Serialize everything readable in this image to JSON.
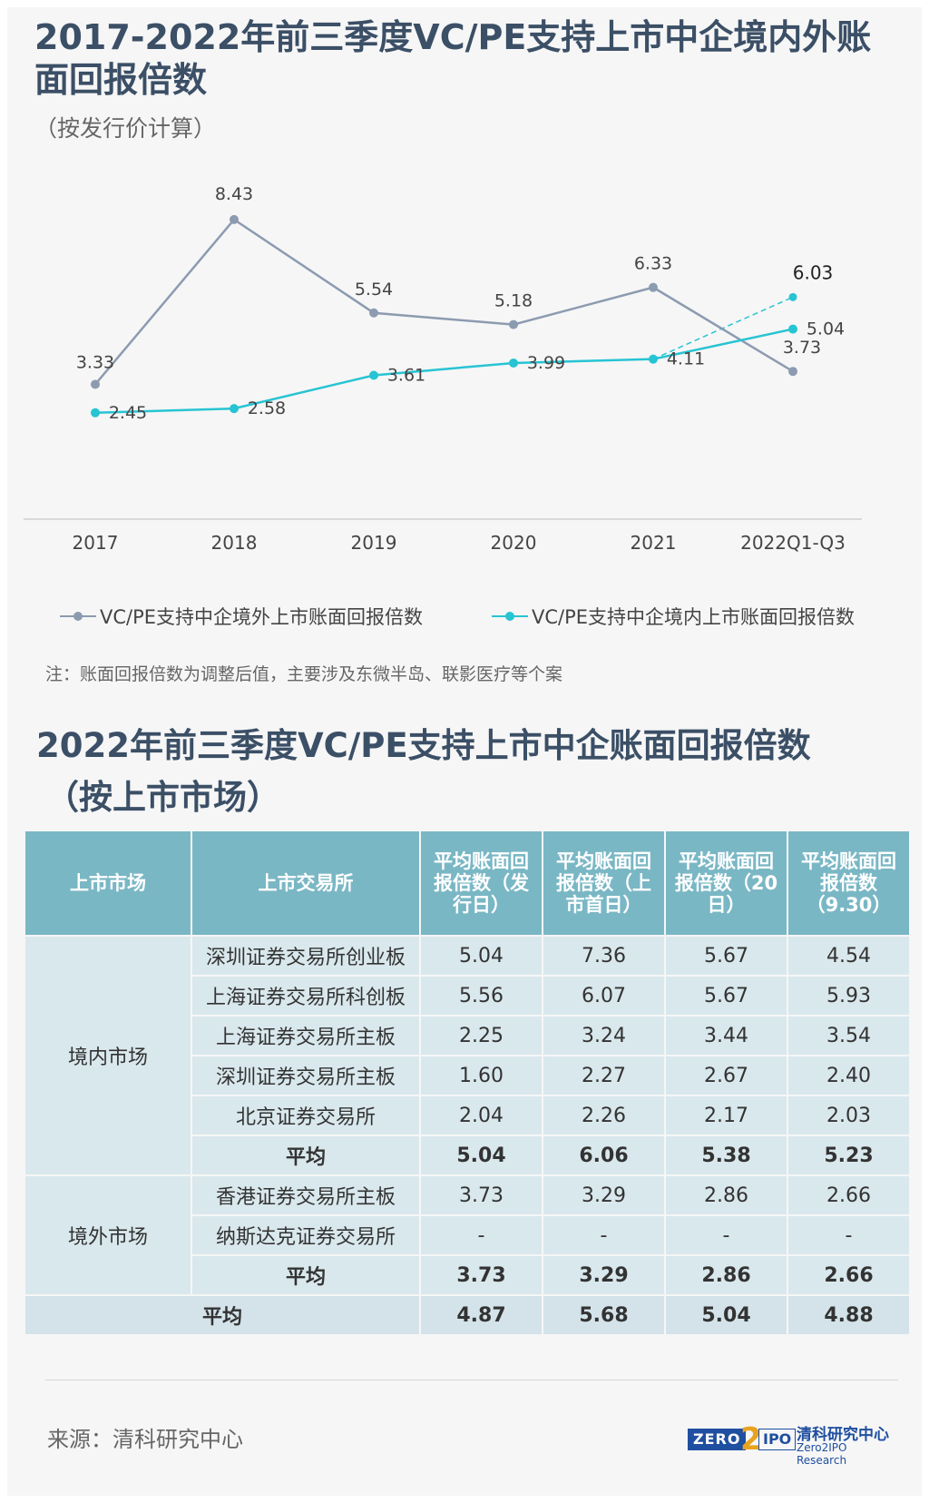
{
  "chart_title": "2017-2022年前三季度VC/PE支持上市中企境内外账面回报倍数",
  "chart_subtitle": "（按发行价计算）",
  "chart_data": {
    "type": "line",
    "title": "2017-2022年前三季度VC/PE支持上市中企境内外账面回报倍数",
    "subtitle": "（按发行价计算）",
    "categories": [
      "2017",
      "2018",
      "2019",
      "2020",
      "2021",
      "2022Q1-Q3"
    ],
    "ylim": [
      0,
      10
    ],
    "grid": false,
    "legend_position": "bottom",
    "series": [
      {
        "name": "VC/PE支持中企境外上市账面回报倍数",
        "color": "#8c9bb0",
        "values": [
          3.33,
          8.43,
          5.54,
          5.18,
          6.33,
          3.73
        ],
        "labels": [
          "3.33",
          "8.43",
          "5.54",
          "5.18",
          "6.33",
          "3.73"
        ]
      },
      {
        "name": "VC/PE支持中企境内上市账面回报倍数",
        "color": "#27c4d3",
        "values": [
          2.45,
          2.58,
          3.61,
          3.99,
          4.11,
          5.04
        ],
        "labels": [
          "2.45",
          "2.58",
          "3.61",
          "3.99",
          "4.11",
          "5.04"
        ]
      }
    ],
    "annotations": [
      {
        "type": "dashed-projection",
        "from_category": "2021",
        "from_value": 4.11,
        "to_category": "2022Q1-Q3",
        "to_value": 6.03,
        "label": "6.03",
        "color": "#27c4d3"
      }
    ]
  },
  "note": "注：账面回报倍数为调整后值，主要涉及东微半岛、联影医疗等个案",
  "table_title": "2022年前三季度VC/PE支持上市中企账面回报倍数",
  "table_subtitle": "（按上市市场）",
  "table": {
    "headers": [
      "上市市场",
      "上市交易所",
      "平均账面回报倍数（发行日）",
      "平均账面回报倍数（上市首日）",
      "平均账面回报倍数（20日）",
      "平均账面回报倍数（9.30）"
    ],
    "groups": [
      {
        "market": "境内市场",
        "rows": [
          {
            "exchange": "深圳证券交易所创业板",
            "values": [
              "5.04",
              "7.36",
              "5.67",
              "4.54"
            ]
          },
          {
            "exchange": "上海证券交易所科创板",
            "values": [
              "5.56",
              "6.07",
              "5.67",
              "5.93"
            ]
          },
          {
            "exchange": "上海证券交易所主板",
            "values": [
              "2.25",
              "3.24",
              "3.44",
              "3.54"
            ]
          },
          {
            "exchange": "深圳证券交易所主板",
            "values": [
              "1.60",
              "2.27",
              "2.67",
              "2.40"
            ]
          },
          {
            "exchange": "北京证券交易所",
            "values": [
              "2.04",
              "2.26",
              "2.17",
              "2.03"
            ]
          },
          {
            "exchange": "平均",
            "values": [
              "5.04",
              "6.06",
              "5.38",
              "5.23"
            ],
            "is_average": true
          }
        ]
      },
      {
        "market": "境外市场",
        "rows": [
          {
            "exchange": "香港证券交易所主板",
            "values": [
              "3.73",
              "3.29",
              "2.86",
              "2.66"
            ]
          },
          {
            "exchange": "纳斯达克证券交易所",
            "values": [
              "-",
              "-",
              "-",
              "-"
            ]
          },
          {
            "exchange": "平均",
            "values": [
              "3.73",
              "3.29",
              "2.86",
              "2.66"
            ],
            "is_average": true
          }
        ]
      }
    ],
    "overall": {
      "label": "平均",
      "values": [
        "4.87",
        "5.68",
        "5.04",
        "4.88"
      ]
    }
  },
  "source": "来源：清科研究中心",
  "logo": {
    "left_text": "ZERO",
    "mid_text": "2",
    "right_text": "IPO",
    "cn_name": "清科研究中心",
    "en_name": "Zero2IPO Research"
  }
}
